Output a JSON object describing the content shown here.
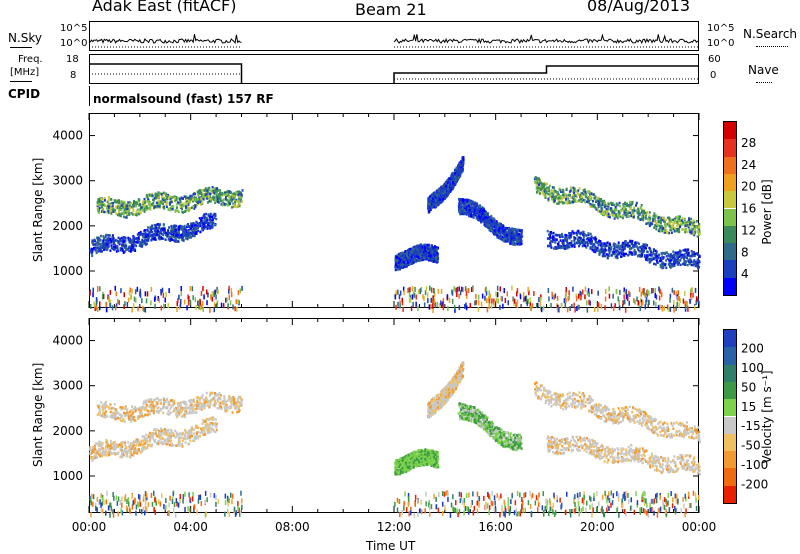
{
  "header": {
    "station": "Adak East (fitACF)",
    "beam": "Beam 21",
    "date": "08/Aug/2013"
  },
  "top_panels": {
    "nsky_label": "N.Sky",
    "nsearch_label": "N.Search",
    "freq_label_1": "Freq.",
    "freq_label_2": "[MHz]",
    "nave_label": "Nave",
    "cpid_label": "CPID",
    "cpid_text": "normalsound (fast) 157 RF",
    "noise_ticks": [
      "10^5",
      "10^0"
    ],
    "freq_ticks": [
      "18",
      "8"
    ],
    "nave_ticks": [
      "60",
      "0"
    ]
  },
  "colorbars": {
    "power_title": "Power [dB]",
    "velocity_title": "Velocity [m s⁻¹]",
    "power_ticks": [
      "4",
      "8",
      "12",
      "16",
      "20",
      "24",
      "28"
    ],
    "velocity_ticks": [
      "200",
      "100",
      "50",
      "15",
      "-15",
      "-50",
      "-100",
      "-200"
    ],
    "power_colors": [
      "#0000ff",
      "#1c3fbd",
      "#2f6a8a",
      "#3a8a5a",
      "#7dc24a",
      "#c8c83c",
      "#f0a020",
      "#f07020",
      "#e83020",
      "#d40000"
    ],
    "velocity_colors": [
      "#1f3fbf",
      "#2a62a8",
      "#2f7f6a",
      "#3c9a45",
      "#7cd24a",
      "#c8c8c8",
      "#f0c060",
      "#f09a30",
      "#f06a10",
      "#e82000"
    ]
  },
  "chart_data": [
    {
      "type": "heatmap",
      "title": "Power",
      "xlabel": "",
      "ylabel": "Slant Range [km]",
      "x_range_hours": [
        0,
        24
      ],
      "ylim_km": [
        180,
        4500
      ],
      "y_ticks": [
        1000,
        2000,
        3000,
        4000
      ],
      "data_gap_hours": [
        6,
        12
      ],
      "features": [
        {
          "start_h": 0.3,
          "end_h": 6.0,
          "range_start_km": 2400,
          "range_end_km": 2700,
          "level": "high"
        },
        {
          "start_h": 0.0,
          "end_h": 5.0,
          "range_start_km": 1500,
          "range_end_km": 2100,
          "level": "mid"
        },
        {
          "start_h": 12.0,
          "end_h": 13.7,
          "range_start_km": 1300,
          "range_end_km": 1400,
          "level": "mid"
        },
        {
          "start_h": 13.3,
          "end_h": 14.7,
          "range_start_km": 2400,
          "range_end_km": 3400,
          "level": "mid"
        },
        {
          "start_h": 14.5,
          "end_h": 17.0,
          "range_start_km": 2500,
          "range_end_km": 1700,
          "level": "mid"
        },
        {
          "start_h": 17.5,
          "end_h": 24.0,
          "range_start_km": 2900,
          "range_end_km": 1900,
          "level": "high"
        },
        {
          "start_h": 18.0,
          "end_h": 24.0,
          "range_start_km": 1800,
          "range_end_km": 1200,
          "level": "low"
        }
      ]
    },
    {
      "type": "heatmap",
      "title": "Velocity",
      "xlabel": "Time UT",
      "ylabel": "Slant Range [km]",
      "x_range_hours": [
        0,
        24
      ],
      "ylim_km": [
        180,
        4500
      ],
      "y_ticks": [
        1000,
        2000,
        3000,
        4000
      ],
      "x_ticks": [
        "00:00",
        "04:00",
        "08:00",
        "12:00",
        "16:00",
        "20:00",
        "00:00"
      ],
      "data_gap_hours": [
        6,
        12
      ]
    }
  ],
  "axes": {
    "ylabel": "Slant Range [km]",
    "xlabel": "Time UT",
    "x_ticks": [
      "00:00",
      "04:00",
      "08:00",
      "12:00",
      "16:00",
      "20:00",
      "00:00"
    ],
    "y_ticks": [
      "1000",
      "2000",
      "3000",
      "4000"
    ]
  }
}
